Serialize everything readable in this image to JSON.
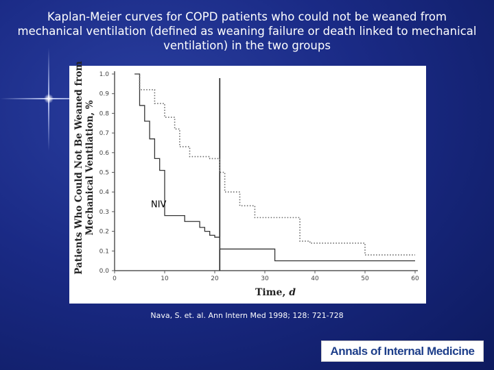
{
  "title": {
    "line1": "Kaplan-Meier curves for COPD patients who could not be weaned from",
    "line2": "mechanical ventilation (defined as weaning failure or death linked to mechanical",
    "line3": "ventilation) in the two groups"
  },
  "citation": "Nava, S. et. al. Ann Intern Med 1998; 128: 721-728",
  "logo_text": "Annals of Internal Medicine",
  "colors": {
    "background": "#1a2a85",
    "title": "#ffffff",
    "logo_text": "#1d3e8a"
  },
  "chart_data": {
    "type": "line",
    "title": "",
    "xlabel": "Time,",
    "xlabel_unit": "d",
    "ylabel_line1": "Patients Who Could Not Be Weaned from",
    "ylabel_line2": "Mechanical Ventilation, %",
    "xlim": [
      0,
      60
    ],
    "ylim": [
      0,
      1.0
    ],
    "xticks": [
      0,
      10,
      20,
      30,
      40,
      50,
      60
    ],
    "xtick_labels": [
      "0",
      "10",
      "20",
      "30",
      "40",
      "50",
      "60"
    ],
    "yticks": [
      0,
      0.1,
      0.2,
      0.3,
      0.4,
      0.5,
      0.6,
      0.7,
      0.8,
      0.9,
      1.0
    ],
    "ytick_labels": [
      "0.0",
      "0.1",
      "0.2",
      "0.3",
      "0.4",
      "0.5",
      "0.6",
      "0.7",
      "0.8",
      "0.9",
      "1.0"
    ],
    "grid": false,
    "vertical_line_x": 21,
    "annotations": [
      {
        "text": "NIV",
        "x": 10,
        "y": 0.33
      }
    ],
    "series": [
      {
        "style": "solid",
        "x": [
          0,
          4,
          5,
          6,
          7,
          8,
          9,
          10,
          14,
          17,
          18,
          19,
          20,
          21,
          32,
          60
        ],
        "y": [
          1.0,
          1.0,
          0.84,
          0.76,
          0.67,
          0.57,
          0.51,
          0.28,
          0.25,
          0.22,
          0.2,
          0.18,
          0.17,
          0.11,
          0.05,
          0.05
        ]
      },
      {
        "style": "dotted",
        "x": [
          0,
          4,
          5,
          8,
          10,
          12,
          13,
          15,
          19,
          21,
          22,
          25,
          28,
          37,
          39,
          50,
          60
        ],
        "y": [
          1.0,
          1.0,
          0.92,
          0.85,
          0.78,
          0.72,
          0.63,
          0.58,
          0.57,
          0.5,
          0.4,
          0.33,
          0.27,
          0.15,
          0.14,
          0.08,
          0.08
        ]
      }
    ]
  }
}
